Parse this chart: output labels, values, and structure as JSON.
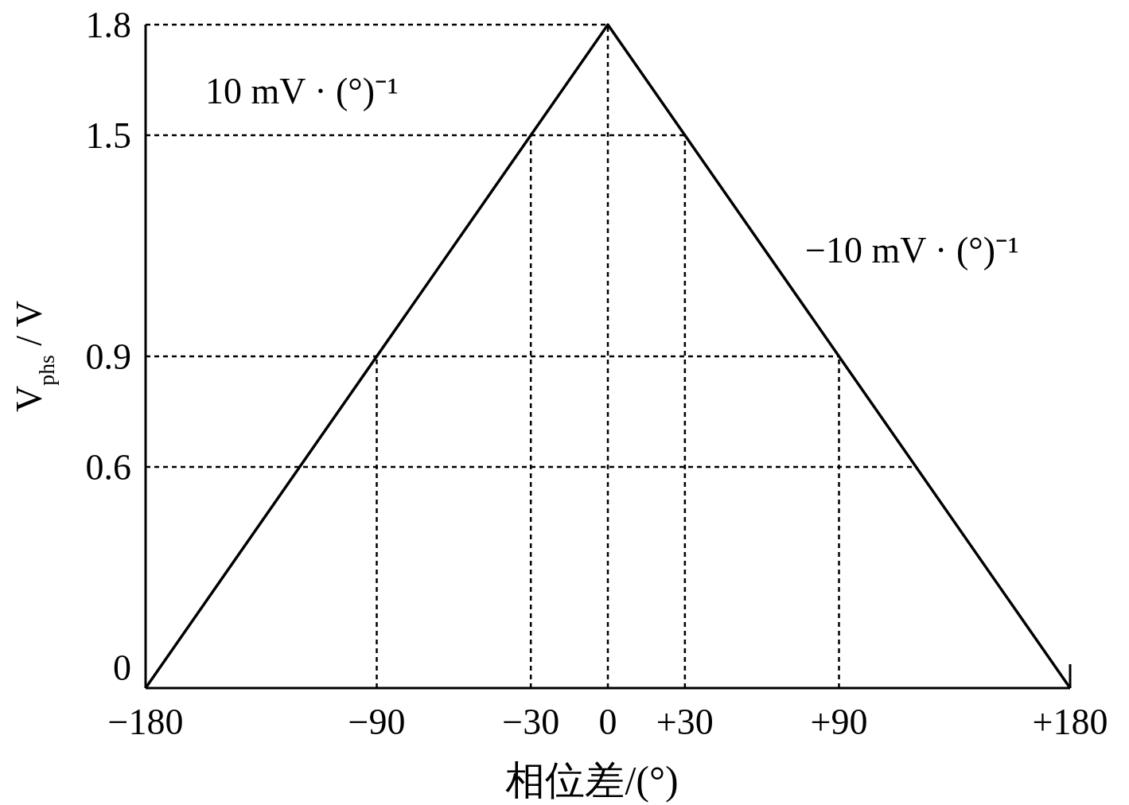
{
  "chart_data": {
    "type": "line",
    "xlabel": "相位差/(°)",
    "ylabel": "V$_{phs}$ / V",
    "x": [
      -180,
      0,
      180
    ],
    "series": [
      {
        "color": "#000000",
        "values": [
          0,
          1.8,
          0
        ]
      }
    ],
    "xlim": [
      -180,
      180
    ],
    "ylim": [
      0,
      1.8
    ],
    "xticks": [
      {
        "value": -180,
        "label": "−180"
      },
      {
        "value": -90,
        "label": "−90"
      },
      {
        "value": -30,
        "label": "−30"
      },
      0,
      {
        "value": 30,
        "label": "+30"
      },
      {
        "value": 90,
        "label": "+90"
      },
      {
        "value": 180,
        "label": "+180"
      }
    ],
    "yticks": [
      0,
      0.6,
      0.9,
      1.5,
      1.8
    ],
    "ref_lines": [
      {
        "axis": "y",
        "value": 1.8,
        "line_style": "dashed"
      },
      {
        "axis": "y",
        "value": 1.5,
        "line_style": "dashed"
      },
      {
        "axis": "y",
        "value": 0.9,
        "line_style": "dashed"
      },
      {
        "axis": "y",
        "value": 0.6,
        "line_style": "dashed"
      },
      {
        "axis": "x",
        "value": -90,
        "line_style": "dashed"
      },
      {
        "axis": "x",
        "value": -30,
        "line_style": "dashed"
      },
      {
        "axis": "x",
        "value": 0,
        "line_style": "dashed"
      },
      {
        "axis": "x",
        "value": 30,
        "line_style": "dashed"
      },
      {
        "axis": "x",
        "value": 90,
        "line_style": "dashed"
      }
    ],
    "annotations": [
      "10 mV · (°)⁻¹",
      "−10 mV · (°)⁻¹"
    ],
    "grid": false,
    "marker": "none",
    "line_style": "solid"
  }
}
